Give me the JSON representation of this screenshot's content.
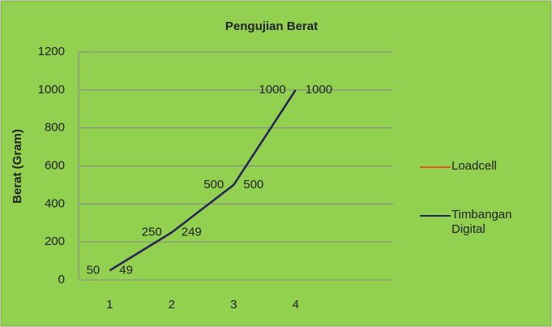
{
  "chart_data": {
    "type": "line",
    "title": "Pengujian Berat",
    "y_label": "Berat (Gram)",
    "categories": [
      "1",
      "2",
      "3",
      "4"
    ],
    "series": [
      {
        "name": "Loadcell",
        "color": "#e8541c",
        "values": [
          49,
          249,
          500,
          1000
        ],
        "label_side": "right"
      },
      {
        "name": "Timbangan Digital",
        "color": "#1f2a5a",
        "values": [
          50,
          250,
          500,
          1000
        ],
        "label_side": "left"
      }
    ],
    "ylim": [
      0,
      1200
    ],
    "yticks": [
      0,
      200,
      400,
      600,
      800,
      1000,
      1200
    ],
    "grid": true,
    "legend": "right"
  }
}
